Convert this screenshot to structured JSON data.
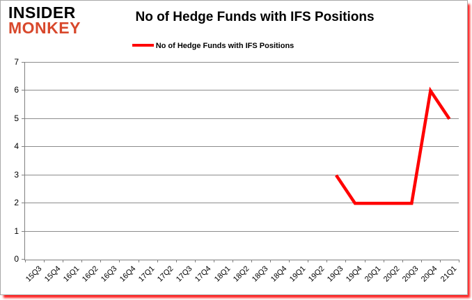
{
  "logo": {
    "line1": "INSIDER",
    "line2": "MONKEY",
    "accent_color": "#d8482c"
  },
  "chart_data": {
    "type": "line",
    "title": "No of Hedge Funds with IFS Positions",
    "xlabel": "",
    "ylabel": "",
    "ylim": [
      0,
      7
    ],
    "yticks": [
      0,
      1,
      2,
      3,
      4,
      5,
      6,
      7
    ],
    "grid": true,
    "legend_position": "top-center",
    "categories": [
      "15Q3",
      "15Q4",
      "16Q1",
      "16Q2",
      "16Q3",
      "16Q4",
      "17Q1",
      "17Q2",
      "17Q3",
      "17Q4",
      "18Q1",
      "18Q2",
      "18Q3",
      "18Q4",
      "19Q1",
      "19Q2",
      "19Q3",
      "19Q4",
      "20Q1",
      "20Q2",
      "20Q3",
      "20Q4",
      "21Q1"
    ],
    "series": [
      {
        "name": "No of Hedge Funds with IFS Positions",
        "color": "#ff0000",
        "line_width": 4.5,
        "values": [
          null,
          null,
          null,
          null,
          null,
          null,
          null,
          null,
          null,
          null,
          null,
          null,
          null,
          null,
          null,
          null,
          3,
          2,
          2,
          2,
          2,
          6,
          5
        ]
      }
    ]
  }
}
